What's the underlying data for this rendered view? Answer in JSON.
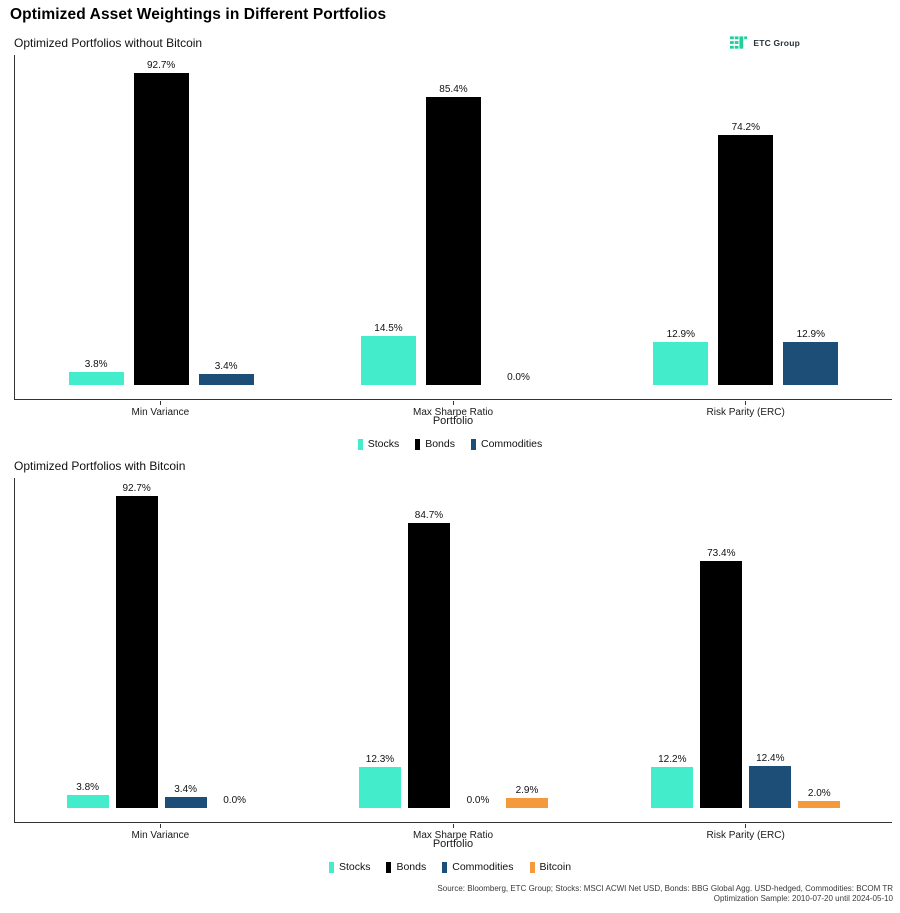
{
  "page": {
    "title": "Optimized Asset Weightings in Different Portfolios",
    "logo": {
      "text": "ETC Group",
      "color": "#21CE9C"
    },
    "source_line1": "Source: Bloomberg, ETC Group; Stocks: MSCI ACWI Net USD, Bonds: BBG Global Agg. USD-hedged, Commodities: BCOM TR",
    "source_line2": "Optimization Sample: 2010-07-20 until 2024-05-10"
  },
  "chart_data": [
    {
      "type": "bar",
      "title": "Optimized Portfolios without Bitcoin",
      "categories": [
        "Min Variance",
        "Max Sharpe Ratio",
        "Risk Parity (ERC)"
      ],
      "xlabel": "Portfolio",
      "ylabel": "",
      "ylim": [
        0,
        100
      ],
      "grid": false,
      "legend_position": "bottom",
      "value_labels": "x.x%",
      "series": [
        {
          "name": "Stocks",
          "color": "#43EDCB",
          "values": [
            3.8,
            14.5,
            12.9
          ]
        },
        {
          "name": "Bonds",
          "color": "#000000",
          "values": [
            92.7,
            85.4,
            74.2
          ]
        },
        {
          "name": "Commodities",
          "color": "#1C4E78",
          "values": [
            3.4,
            0.0,
            12.9
          ]
        }
      ]
    },
    {
      "type": "bar",
      "title": "Optimized Portfolios with Bitcoin",
      "categories": [
        "Min Variance",
        "Max Sharpe Ratio",
        "Risk Parity (ERC)"
      ],
      "xlabel": "Portfolio",
      "ylabel": "",
      "ylim": [
        0,
        100
      ],
      "grid": false,
      "legend_position": "bottom",
      "value_labels": "x.x%",
      "series": [
        {
          "name": "Stocks",
          "color": "#43EDCB",
          "values": [
            3.8,
            12.3,
            12.2
          ]
        },
        {
          "name": "Bonds",
          "color": "#000000",
          "values": [
            92.7,
            84.7,
            73.4
          ]
        },
        {
          "name": "Commodities",
          "color": "#1C4E78",
          "values": [
            3.4,
            0.0,
            12.4
          ]
        },
        {
          "name": "Bitcoin",
          "color": "#F5993D",
          "values": [
            0.0,
            2.9,
            2.0
          ]
        }
      ]
    }
  ]
}
